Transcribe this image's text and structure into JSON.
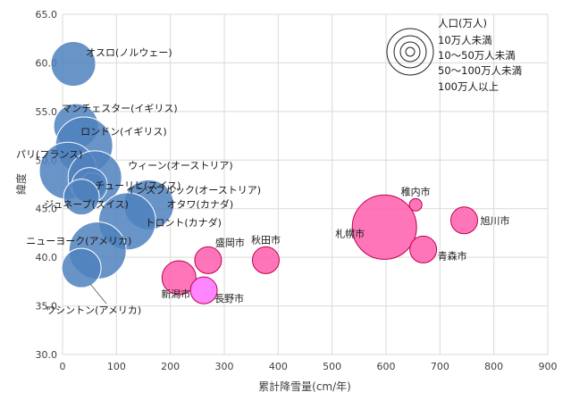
{
  "chart_data": {
    "type": "scatter",
    "bubble": true,
    "xlabel": "累計降雪量(cm/年)",
    "ylabel": "緯度",
    "xlim": [
      0,
      900
    ],
    "ylim": [
      30,
      65
    ],
    "x_ticks": [
      "0",
      "100",
      "200",
      "300",
      "400",
      "500",
      "600",
      "700",
      "800",
      "900"
    ],
    "y_ticks": [
      "30.0",
      "35.0",
      "40.0",
      "45.0",
      "50.0",
      "55.0",
      "60.0",
      "65.0"
    ],
    "grid": true,
    "legend": {
      "title": "人口(万人)",
      "entries": [
        "10万人未満",
        "10〜50万人未満",
        "50〜100万人未満",
        "100万人以上"
      ],
      "placement": "top-right"
    },
    "colors": {
      "world": "#4f81bd",
      "japan": "#ff66b3",
      "japan_border": "#c0004a",
      "nagano": "#ff80ff",
      "grid": "#d9d9d9"
    },
    "series": [
      {
        "points": [
          {
            "label": "オスロ(ノルウェー)",
            "x": 20,
            "y": 59.9,
            "size": 25
          },
          {
            "label": "マンチェスター(イギリス)",
            "x": 25,
            "y": 53.5,
            "size": 25
          },
          {
            "label": "ロンドン(イギリス)",
            "x": 40,
            "y": 51.5,
            "size": 32
          },
          {
            "label": "パリ(フランス)",
            "x": 10,
            "y": 48.9,
            "size": 32
          },
          {
            "label": "ウィーン(オーストリア)",
            "x": 60,
            "y": 48.2,
            "size": 30
          },
          {
            "label": "インスブルック(オーストリア)",
            "x": 55,
            "y": 47.3,
            "size": 15
          },
          {
            "label": "チューリヒ(スイス)",
            "x": 50,
            "y": 47.4,
            "size": 20
          },
          {
            "label": "ジュネーブ(スイス)",
            "x": 35,
            "y": 46.2,
            "size": 20
          },
          {
            "label": "オタワ(カナダ)",
            "x": 160,
            "y": 45.4,
            "size": 28
          },
          {
            "label": "トロント(カナダ)",
            "x": 120,
            "y": 43.7,
            "size": 32
          },
          {
            "label": "ニューヨーク(アメリカ)",
            "x": 65,
            "y": 40.7,
            "size": 32
          },
          {
            "label": "ワシントン(アメリカ)",
            "x": 35,
            "y": 38.9,
            "size": 22
          }
        ]
      },
      {
        "points": [
          {
            "label": "稚内市",
            "x": 655,
            "y": 45.4,
            "size": 7
          },
          {
            "label": "旭川市",
            "x": 745,
            "y": 43.8,
            "size": 15
          },
          {
            "label": "札幌市",
            "x": 597,
            "y": 43.1,
            "size": 36
          },
          {
            "label": "青森市",
            "x": 669,
            "y": 40.8,
            "size": 15
          },
          {
            "label": "秋田市",
            "x": 377,
            "y": 39.7,
            "size": 15
          },
          {
            "label": "盛岡市",
            "x": 270,
            "y": 39.7,
            "size": 15
          },
          {
            "label": "新潟市",
            "x": 216,
            "y": 37.9,
            "size": 19
          },
          {
            "label": "長野市",
            "x": 262,
            "y": 36.6,
            "size": 15
          }
        ]
      }
    ]
  }
}
